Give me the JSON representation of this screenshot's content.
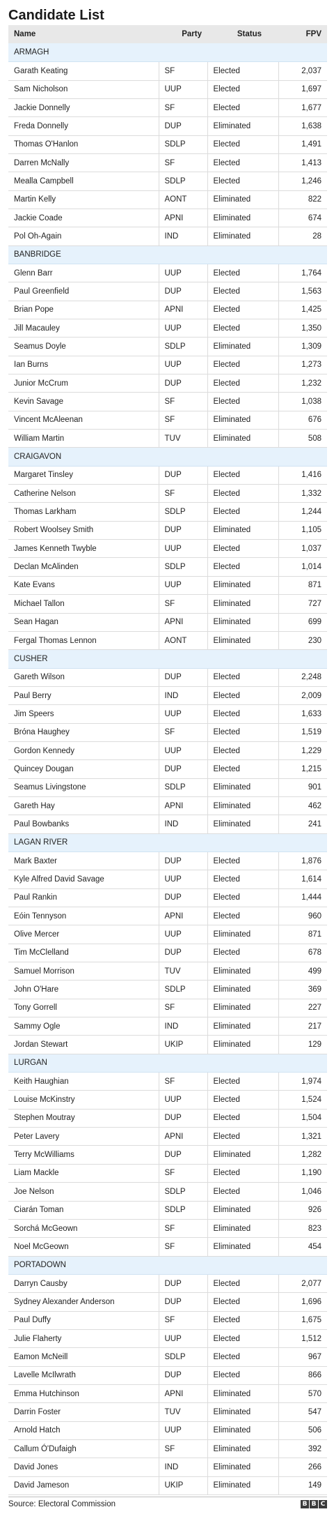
{
  "title": "Candidate List",
  "headers": {
    "name": "Name",
    "party": "Party",
    "status": "Status",
    "fpv": "FPV"
  },
  "constituencies": [
    {
      "name": "ARMAGH",
      "candidates": [
        {
          "name": "Garath Keating",
          "party": "SF",
          "status": "Elected",
          "fpv": "2,037"
        },
        {
          "name": "Sam Nicholson",
          "party": "UUP",
          "status": "Elected",
          "fpv": "1,697"
        },
        {
          "name": "Jackie Donnelly",
          "party": "SF",
          "status": "Elected",
          "fpv": "1,677"
        },
        {
          "name": "Freda Donnelly",
          "party": "DUP",
          "status": "Eliminated",
          "fpv": "1,638"
        },
        {
          "name": "Thomas O'Hanlon",
          "party": "SDLP",
          "status": "Elected",
          "fpv": "1,491"
        },
        {
          "name": "Darren McNally",
          "party": "SF",
          "status": "Elected",
          "fpv": "1,413"
        },
        {
          "name": "Mealla Campbell",
          "party": "SDLP",
          "status": "Elected",
          "fpv": "1,246"
        },
        {
          "name": "Martin Kelly",
          "party": "AONT",
          "status": "Eliminated",
          "fpv": "822"
        },
        {
          "name": "Jackie Coade",
          "party": "APNI",
          "status": "Eliminated",
          "fpv": "674"
        },
        {
          "name": "Pol Oh-Again",
          "party": "IND",
          "status": "Eliminated",
          "fpv": "28"
        }
      ]
    },
    {
      "name": "BANBRIDGE",
      "candidates": [
        {
          "name": "Glenn Barr",
          "party": "UUP",
          "status": "Elected",
          "fpv": "1,764"
        },
        {
          "name": "Paul Greenfield",
          "party": "DUP",
          "status": "Elected",
          "fpv": "1,563"
        },
        {
          "name": "Brian Pope",
          "party": "APNI",
          "status": "Elected",
          "fpv": "1,425"
        },
        {
          "name": "Jill Macauley",
          "party": "UUP",
          "status": "Elected",
          "fpv": "1,350"
        },
        {
          "name": "Seamus Doyle",
          "party": "SDLP",
          "status": "Eliminated",
          "fpv": "1,309"
        },
        {
          "name": "Ian Burns",
          "party": "UUP",
          "status": "Elected",
          "fpv": "1,273"
        },
        {
          "name": "Junior McCrum",
          "party": "DUP",
          "status": "Elected",
          "fpv": "1,232"
        },
        {
          "name": "Kevin Savage",
          "party": "SF",
          "status": "Elected",
          "fpv": "1,038"
        },
        {
          "name": "Vincent McAleenan",
          "party": "SF",
          "status": "Eliminated",
          "fpv": "676"
        },
        {
          "name": "William Martin",
          "party": "TUV",
          "status": "Eliminated",
          "fpv": "508"
        }
      ]
    },
    {
      "name": "CRAIGAVON",
      "candidates": [
        {
          "name": "Margaret Tinsley",
          "party": "DUP",
          "status": "Elected",
          "fpv": "1,416"
        },
        {
          "name": "Catherine Nelson",
          "party": "SF",
          "status": "Elected",
          "fpv": "1,332"
        },
        {
          "name": "Thomas Larkham",
          "party": "SDLP",
          "status": "Elected",
          "fpv": "1,244"
        },
        {
          "name": "Robert Woolsey Smith",
          "party": "DUP",
          "status": "Eliminated",
          "fpv": "1,105"
        },
        {
          "name": "James Kenneth Twyble",
          "party": "UUP",
          "status": "Elected",
          "fpv": "1,037"
        },
        {
          "name": "Declan McAlinden",
          "party": "SDLP",
          "status": "Elected",
          "fpv": "1,014"
        },
        {
          "name": "Kate Evans",
          "party": "UUP",
          "status": "Eliminated",
          "fpv": "871"
        },
        {
          "name": "Michael Tallon",
          "party": "SF",
          "status": "Eliminated",
          "fpv": "727"
        },
        {
          "name": "Sean Hagan",
          "party": "APNI",
          "status": "Eliminated",
          "fpv": "699"
        },
        {
          "name": "Fergal Thomas Lennon",
          "party": "AONT",
          "status": "Eliminated",
          "fpv": "230"
        }
      ]
    },
    {
      "name": "CUSHER",
      "candidates": [
        {
          "name": "Gareth Wilson",
          "party": "DUP",
          "status": "Elected",
          "fpv": "2,248"
        },
        {
          "name": "Paul Berry",
          "party": "IND",
          "status": "Elected",
          "fpv": "2,009"
        },
        {
          "name": "Jim Speers",
          "party": "UUP",
          "status": "Elected",
          "fpv": "1,633"
        },
        {
          "name": "Brónа Haughey",
          "party": "SF",
          "status": "Elected",
          "fpv": "1,519"
        },
        {
          "name": "Gordon Kennedy",
          "party": "UUP",
          "status": "Elected",
          "fpv": "1,229"
        },
        {
          "name": "Quincey Dougan",
          "party": "DUP",
          "status": "Elected",
          "fpv": "1,215"
        },
        {
          "name": "Seamus Livingstone",
          "party": "SDLP",
          "status": "Eliminated",
          "fpv": "901"
        },
        {
          "name": "Gareth Hay",
          "party": "APNI",
          "status": "Eliminated",
          "fpv": "462"
        },
        {
          "name": "Paul Bowbanks",
          "party": "IND",
          "status": "Eliminated",
          "fpv": "241"
        }
      ]
    },
    {
      "name": "LAGAN RIVER",
      "candidates": [
        {
          "name": "Mark Baxter",
          "party": "DUP",
          "status": "Elected",
          "fpv": "1,876"
        },
        {
          "name": "Kyle Alfred David Savage",
          "party": "UUP",
          "status": "Elected",
          "fpv": "1,614"
        },
        {
          "name": "Paul Rankin",
          "party": "DUP",
          "status": "Elected",
          "fpv": "1,444"
        },
        {
          "name": "Eóin Tennyson",
          "party": "APNI",
          "status": "Elected",
          "fpv": "960"
        },
        {
          "name": "Olive Mercer",
          "party": "UUP",
          "status": "Eliminated",
          "fpv": "871"
        },
        {
          "name": "Tim McClelland",
          "party": "DUP",
          "status": "Elected",
          "fpv": "678"
        },
        {
          "name": "Samuel Morrison",
          "party": "TUV",
          "status": "Eliminated",
          "fpv": "499"
        },
        {
          "name": "John O'Hare",
          "party": "SDLP",
          "status": "Eliminated",
          "fpv": "369"
        },
        {
          "name": "Tony Gorrell",
          "party": "SF",
          "status": "Eliminated",
          "fpv": "227"
        },
        {
          "name": "Sammy Ogle",
          "party": "IND",
          "status": "Eliminated",
          "fpv": "217"
        },
        {
          "name": "Jordan Stewart",
          "party": "UKIP",
          "status": "Eliminated",
          "fpv": "129"
        }
      ]
    },
    {
      "name": "LURGAN",
      "candidates": [
        {
          "name": "Keith Haughian",
          "party": "SF",
          "status": "Elected",
          "fpv": "1,974"
        },
        {
          "name": "Louise McKinstry",
          "party": "UUP",
          "status": "Elected",
          "fpv": "1,524"
        },
        {
          "name": "Stephen Moutray",
          "party": "DUP",
          "status": "Elected",
          "fpv": "1,504"
        },
        {
          "name": "Peter Lavery",
          "party": "APNI",
          "status": "Elected",
          "fpv": "1,321"
        },
        {
          "name": "Terry McWilliams",
          "party": "DUP",
          "status": "Eliminated",
          "fpv": "1,282"
        },
        {
          "name": "Liam Mackle",
          "party": "SF",
          "status": "Elected",
          "fpv": "1,190"
        },
        {
          "name": "Joe Nelson",
          "party": "SDLP",
          "status": "Elected",
          "fpv": "1,046"
        },
        {
          "name": "Ciarán Toman",
          "party": "SDLP",
          "status": "Eliminated",
          "fpv": "926"
        },
        {
          "name": "Sorchá McGeown",
          "party": "SF",
          "status": "Eliminated",
          "fpv": "823"
        },
        {
          "name": "Noel McGeown",
          "party": "SF",
          "status": "Eliminated",
          "fpv": "454"
        }
      ]
    },
    {
      "name": "PORTADOWN",
      "candidates": [
        {
          "name": "Darryn Causby",
          "party": "DUP",
          "status": "Elected",
          "fpv": "2,077"
        },
        {
          "name": "Sydney Alexander Anderson",
          "party": "DUP",
          "status": "Elected",
          "fpv": "1,696"
        },
        {
          "name": "Paul Duffy",
          "party": "SF",
          "status": "Elected",
          "fpv": "1,675"
        },
        {
          "name": "Julie Flaherty",
          "party": "UUP",
          "status": "Elected",
          "fpv": "1,512"
        },
        {
          "name": "Eamon McNeill",
          "party": "SDLP",
          "status": "Elected",
          "fpv": "967"
        },
        {
          "name": "Lavelle McIlwrath",
          "party": "DUP",
          "status": "Elected",
          "fpv": "866"
        },
        {
          "name": "Emma Hutchinson",
          "party": "APNI",
          "status": "Eliminated",
          "fpv": "570"
        },
        {
          "name": "Darrin Foster",
          "party": "TUV",
          "status": "Eliminated",
          "fpv": "547"
        },
        {
          "name": "Arnold Hatch",
          "party": "UUP",
          "status": "Eliminated",
          "fpv": "506"
        },
        {
          "name": "Callum Ó'Dufaigh",
          "party": "SF",
          "status": "Eliminated",
          "fpv": "392"
        },
        {
          "name": "David Jones",
          "party": "IND",
          "status": "Eliminated",
          "fpv": "266"
        },
        {
          "name": "David Jameson",
          "party": "UKIP",
          "status": "Eliminated",
          "fpv": "149"
        }
      ]
    }
  ],
  "source": "Source: Electoral Commission",
  "logo": {
    "letters": [
      "B",
      "B",
      "C"
    ],
    "icon": "bbc-logo"
  }
}
